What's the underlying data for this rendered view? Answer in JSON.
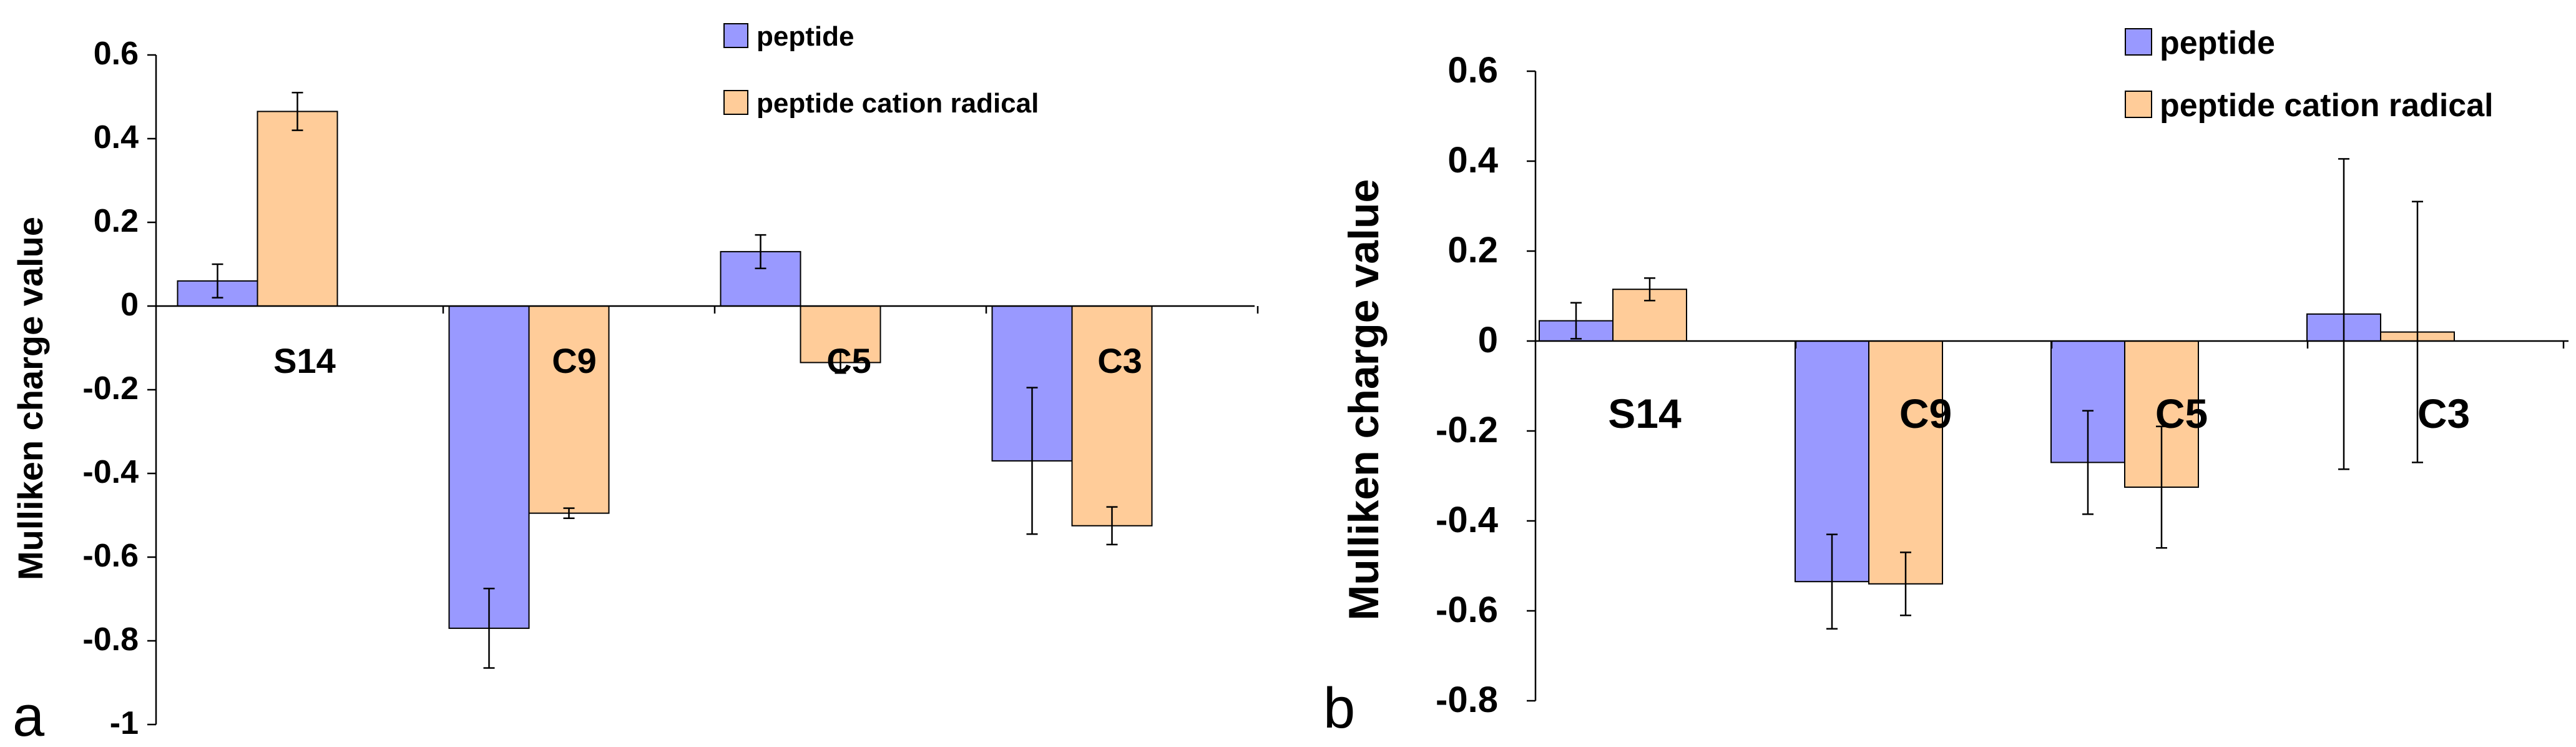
{
  "chart_data": [
    {
      "panel_label": "a",
      "type": "bar",
      "ylabel": "Mulliken charge value",
      "ylim": [
        -1,
        0.6
      ],
      "yticks": [
        0.6,
        0.4,
        0.2,
        0,
        -0.2,
        -0.4,
        -0.6,
        -0.8,
        -1
      ],
      "ytick_labels": [
        "0.6",
        "0.4",
        "0.2",
        "0",
        "-0.2",
        "-0.4",
        "-0.6",
        "-0.8",
        "-1"
      ],
      "categories": [
        "S14",
        "C9",
        "C5",
        "C3"
      ],
      "legend_position": "top-right",
      "series": [
        {
          "name": "peptide",
          "color": "#9999FF",
          "values": [
            0.06,
            -0.77,
            0.13,
            -0.37
          ],
          "errors": [
            0.04,
            0.095,
            0.04,
            0.175
          ]
        },
        {
          "name": "peptide cation radical",
          "color": "#FFCC99",
          "values": [
            0.465,
            -0.495,
            -0.135,
            -0.525
          ],
          "errors": [
            0.045,
            0.012,
            0.025,
            0.045
          ]
        }
      ]
    },
    {
      "panel_label": "b",
      "type": "bar",
      "ylabel": "Mulliken charge value",
      "ylim": [
        -0.8,
        0.6
      ],
      "yticks": [
        0.6,
        0.4,
        0.2,
        0,
        -0.2,
        -0.4,
        -0.6,
        -0.8
      ],
      "ytick_labels": [
        "0.6",
        "0.4",
        "0.2",
        "0",
        "-0.2",
        "-0.4",
        "-0.6",
        "-0.8"
      ],
      "categories": [
        "S14",
        "C9",
        "C5",
        "C3"
      ],
      "legend_position": "top-right",
      "series": [
        {
          "name": "peptide",
          "color": "#9999FF",
          "values": [
            0.045,
            -0.535,
            -0.27,
            0.06
          ],
          "errors": [
            0.04,
            0.105,
            0.115,
            0.345
          ]
        },
        {
          "name": "peptide cation radical",
          "color": "#FFCC99",
          "values": [
            0.115,
            -0.54,
            -0.325,
            0.02
          ],
          "errors": [
            0.025,
            0.07,
            0.135,
            0.29
          ]
        }
      ]
    }
  ]
}
